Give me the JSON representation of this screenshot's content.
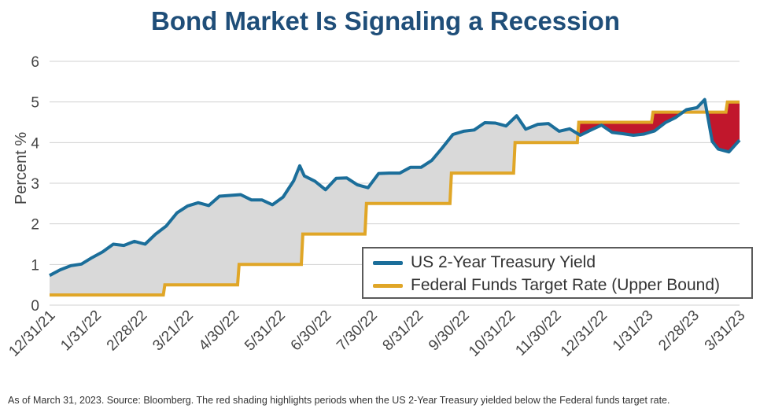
{
  "title": "Bond Market Is Signaling a Recession",
  "footnote": "As of March 31, 2023. Source: Bloomberg. The red shading highlights periods when the US 2-Year Treasury yielded below the Federal funds target rate.",
  "colors": {
    "title": "#1f4e79",
    "treasury_line": "#1b6e9a",
    "fed_line": "#e0a627",
    "spread_fill": "#d9d9d9",
    "inversion_fill": "#c1172c",
    "grid": "#d0d0d0"
  },
  "chart_data": {
    "type": "line",
    "title": "Bond Market Is Signaling a Recession",
    "ylabel": "Percent %",
    "xlabel": "",
    "ylim": [
      0,
      6
    ],
    "yticks": [
      0,
      1,
      2,
      3,
      4,
      5,
      6
    ],
    "xlim": [
      "2021-12-31",
      "2023-03-31"
    ],
    "xticks": [
      "12/31/21",
      "1/31/22",
      "2/28/22",
      "3/21/22",
      "4/30/22",
      "5/31/22",
      "6/30/22",
      "7/30/22",
      "8/31/22",
      "9/30/22",
      "10/31/22",
      "11/30/22",
      "12/31/22",
      "1/31/23",
      "2/28/23",
      "3/31/23"
    ],
    "grid": true,
    "legend_position": "bottom-right",
    "series": [
      {
        "name": "US 2-Year Treasury Yield",
        "color": "#1b6e9a",
        "points": [
          [
            "2021-12-31",
            0.73
          ],
          [
            "2022-01-07",
            0.87
          ],
          [
            "2022-01-14",
            0.97
          ],
          [
            "2022-01-21",
            1.01
          ],
          [
            "2022-01-28",
            1.17
          ],
          [
            "2022-02-04",
            1.31
          ],
          [
            "2022-02-11",
            1.5
          ],
          [
            "2022-02-18",
            1.47
          ],
          [
            "2022-02-25",
            1.57
          ],
          [
            "2022-03-04",
            1.5
          ],
          [
            "2022-03-11",
            1.75
          ],
          [
            "2022-03-18",
            1.95
          ],
          [
            "2022-03-25",
            2.27
          ],
          [
            "2022-04-01",
            2.44
          ],
          [
            "2022-04-08",
            2.52
          ],
          [
            "2022-04-15",
            2.45
          ],
          [
            "2022-04-22",
            2.68
          ],
          [
            "2022-04-29",
            2.7
          ],
          [
            "2022-05-06",
            2.72
          ],
          [
            "2022-05-13",
            2.59
          ],
          [
            "2022-05-20",
            2.59
          ],
          [
            "2022-05-27",
            2.47
          ],
          [
            "2022-06-03",
            2.66
          ],
          [
            "2022-06-10",
            3.06
          ],
          [
            "2022-06-14",
            3.43
          ],
          [
            "2022-06-17",
            3.18
          ],
          [
            "2022-06-24",
            3.05
          ],
          [
            "2022-07-01",
            2.84
          ],
          [
            "2022-07-08",
            3.12
          ],
          [
            "2022-07-15",
            3.13
          ],
          [
            "2022-07-22",
            2.96
          ],
          [
            "2022-07-29",
            2.89
          ],
          [
            "2022-08-05",
            3.24
          ],
          [
            "2022-08-12",
            3.25
          ],
          [
            "2022-08-19",
            3.25
          ],
          [
            "2022-08-26",
            3.39
          ],
          [
            "2022-09-02",
            3.39
          ],
          [
            "2022-09-09",
            3.56
          ],
          [
            "2022-09-16",
            3.87
          ],
          [
            "2022-09-23",
            4.2
          ],
          [
            "2022-09-30",
            4.28
          ],
          [
            "2022-10-07",
            4.31
          ],
          [
            "2022-10-14",
            4.49
          ],
          [
            "2022-10-21",
            4.48
          ],
          [
            "2022-10-28",
            4.41
          ],
          [
            "2022-11-04",
            4.66
          ],
          [
            "2022-11-10",
            4.33
          ],
          [
            "2022-11-18",
            4.45
          ],
          [
            "2022-11-25",
            4.47
          ],
          [
            "2022-12-02",
            4.28
          ],
          [
            "2022-12-09",
            4.34
          ],
          [
            "2022-12-16",
            4.18
          ],
          [
            "2022-12-23",
            4.31
          ],
          [
            "2022-12-30",
            4.43
          ],
          [
            "2023-01-06",
            4.25
          ],
          [
            "2023-01-13",
            4.22
          ],
          [
            "2023-01-20",
            4.18
          ],
          [
            "2023-01-27",
            4.21
          ],
          [
            "2023-02-03",
            4.29
          ],
          [
            "2023-02-10",
            4.49
          ],
          [
            "2023-02-17",
            4.62
          ],
          [
            "2023-02-24",
            4.81
          ],
          [
            "2023-03-03",
            4.86
          ],
          [
            "2023-03-08",
            5.06
          ],
          [
            "2023-03-13",
            4.03
          ],
          [
            "2023-03-17",
            3.84
          ],
          [
            "2023-03-24",
            3.77
          ],
          [
            "2023-03-31",
            4.06
          ]
        ]
      },
      {
        "name": "Federal Funds Target Rate (Upper Bound)",
        "color": "#e0a627",
        "points": [
          [
            "2021-12-31",
            0.25
          ],
          [
            "2022-03-16",
            0.25
          ],
          [
            "2022-03-17",
            0.5
          ],
          [
            "2022-05-04",
            0.5
          ],
          [
            "2022-05-05",
            1.0
          ],
          [
            "2022-06-15",
            1.0
          ],
          [
            "2022-06-16",
            1.75
          ],
          [
            "2022-07-27",
            1.75
          ],
          [
            "2022-07-28",
            2.5
          ],
          [
            "2022-09-21",
            2.5
          ],
          [
            "2022-09-22",
            3.25
          ],
          [
            "2022-11-02",
            3.25
          ],
          [
            "2022-11-03",
            4.0
          ],
          [
            "2022-12-14",
            4.0
          ],
          [
            "2022-12-15",
            4.5
          ],
          [
            "2023-02-01",
            4.5
          ],
          [
            "2023-02-02",
            4.75
          ],
          [
            "2023-03-22",
            4.75
          ],
          [
            "2023-03-23",
            5.0
          ],
          [
            "2023-03-31",
            5.0
          ]
        ]
      }
    ]
  }
}
